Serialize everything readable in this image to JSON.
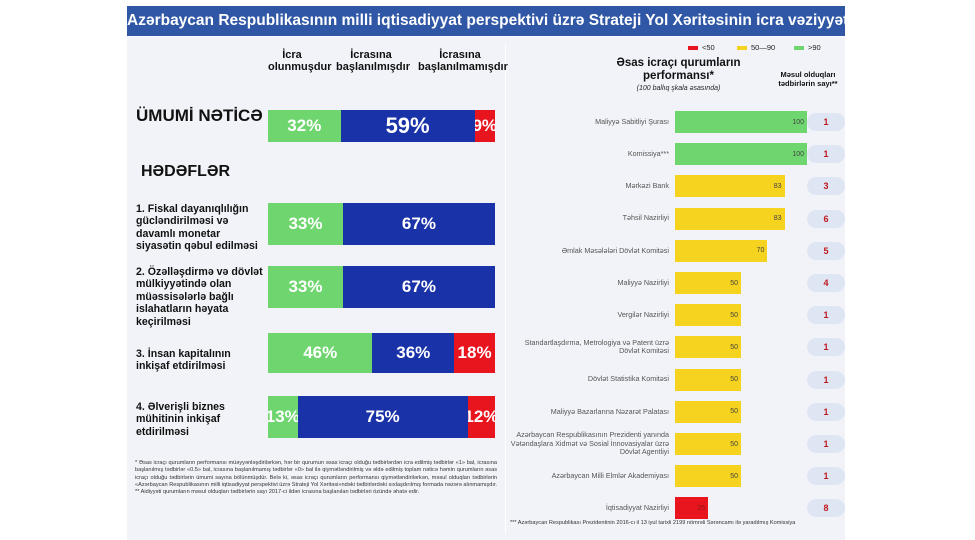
{
  "header": {
    "title": "Azərbaycan Respublikasının milli iqtisadiyyat perspektivi üzrə Strateji Yol Xəritəsinin icra vəziyyəti"
  },
  "left": {
    "col_headers": [
      "İcra olunmuşdur",
      "İcrasına başlanılmışdır",
      "İcrasına başlanılmamışdır"
    ],
    "overall_label": "ÜMUMİ NƏTİCƏ",
    "goals_heading": "HƏDƏFLƏR",
    "colors": {
      "done": "#6fd66f",
      "started": "#1a32a8",
      "not_started": "#e8141e"
    }
  },
  "legend": [
    {
      "label": "<50",
      "color": "#e8141e"
    },
    {
      "label": "50—90",
      "color": "#f5d31f"
    },
    {
      "label": ">90",
      "color": "#6fd66f"
    }
  ],
  "right": {
    "title": "Əsas icraçı qurumların performansı*",
    "subtitle": "(100 ballıq şkala əsasında)",
    "resp_title": "Məsul olduqları tədbirlərin sayı**"
  },
  "chart_data": [
    {
      "type": "bar",
      "orientation": "horizontal",
      "stacked": true,
      "categories": [
        "ÜMUMİ NƏTİCƏ",
        "1. Fiskal dayanıqlılığın gücləndirilməsi və davamlı monetar siyasətin qəbul edilməsi",
        "2. Özəlləşdirmə və dövlət mülkiyyətində olan müəssisələrlə bağlı islahatların həyata keçirilməsi",
        "3. İnsan kapitalının inkişaf etdirilməsi",
        "4. Əlverişli biznes mühitinin inkişaf etdirilməsi"
      ],
      "series": [
        {
          "name": "İcra olunmuşdur",
          "values": [
            32,
            33,
            33,
            46,
            13
          ],
          "labels": [
            "32%",
            "33%",
            "33%",
            "46%",
            "13%"
          ]
        },
        {
          "name": "İcrasına başlanılmışdır",
          "values": [
            59,
            67,
            67,
            36,
            75
          ],
          "labels": [
            "59%",
            "67%",
            "67%",
            "36%",
            "75%"
          ]
        },
        {
          "name": "İcrasına başlanılmamışdır",
          "values": [
            9,
            0,
            0,
            18,
            12
          ],
          "labels": [
            "9%",
            "",
            "",
            "18%",
            "12%"
          ]
        }
      ]
    },
    {
      "type": "bar",
      "orientation": "horizontal",
      "categories": [
        "Maliyyə Sabitliyi Şurası",
        "Komissiya***",
        "Mərkəzi Bank",
        "Təhsil Nazirliyi",
        "Əmlak Məsələləri Dövlət Komitəsi",
        "Maliyyə Nazirliyi",
        "Vergilər Nazirliyi",
        "Standartlaşdırma, Metrologiya və Patent üzrə Dövlət Komitəsi",
        "Dövlət Statistika Komitəsi",
        "Maliyyə Bazarlarına Nəzarət Palatası",
        "Azərbaycan Respublikasının Prezidenti yanında Vətəndaşlara Xidmət və Sosial İnnovasiyalar üzrə Dövlət Agentliyi",
        "Azərbaycan Milli Elmlər Akademiyası",
        "İqtisadiyyat Nazirliyi"
      ],
      "values": [
        100,
        100,
        83,
        83,
        70,
        50,
        50,
        50,
        50,
        50,
        50,
        50,
        25
      ],
      "value_labels": [
        "100",
        "100",
        "83",
        "83",
        "70",
        "50",
        "50",
        "50",
        "50",
        "50",
        "50",
        "50",
        "25"
      ],
      "responsible_counts": [
        "1",
        "1",
        "3",
        "6",
        "5",
        "4",
        "1",
        "1",
        "1",
        "1",
        "1",
        "1",
        "8"
      ],
      "xlim": [
        0,
        100
      ]
    }
  ],
  "footnotes": {
    "left": "* Əsas icraçı qurumların performansı müəyyənləşdirilərkən, hər bir qurumun əsas icraçı olduğu tədbirlərdən icra edilmiş tədbirlər «1» bal, icrasına başlanılmış tədbirlər «0.5» bal, icrasına başlanılmamış tədbirlər «0» bal ilə qiymətləndirilmiş və əldə edilmiş toplam nəticə həmin qurumların əsas icraçı olduğu tədbirlərin ümumi sayına bölünmüşdür. Belə ki, əsas icraçı qurumların performansı qiymətləndirilərkən, məsul olduqları tədbirlərin «Azərbaycan Respublikasının milli iqtisadiyyat perspektivi üzrə Strateji Yol Xəritəsi»ndəki tədbirlərdəki sıxlaşdırılmış formada nəzərə alınmamışdır. ** Aidiyyəti qurumların məsul olduqları tədbirlərin sayı 2017-ci ildən icrasına başlanılan tədbirləri özündə əhatə edir.",
    "right": "*** Azərbaycan Respublikası Prezidentinin 2016-cı il 13 iyul tarixli 2199 nömrəli Sərəncamı ilə yaradılmış Komissiya"
  }
}
